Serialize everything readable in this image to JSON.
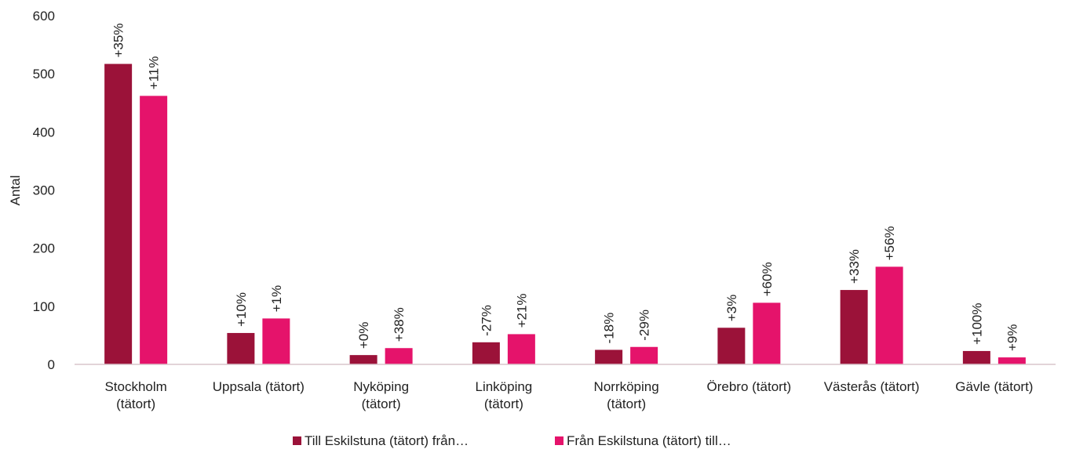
{
  "chart_data": {
    "type": "bar",
    "title": "",
    "xlabel": "",
    "ylabel": "Antal",
    "ylim": [
      0,
      600
    ],
    "yticks": [
      0,
      100,
      200,
      300,
      400,
      500,
      600
    ],
    "grid": false,
    "legend_position": "bottom",
    "categories": [
      [
        "Stockholm",
        "(tätort)"
      ],
      [
        "Uppsala (tätort)"
      ],
      [
        "Nyköping",
        "(tätort)"
      ],
      [
        "Linköping",
        "(tätort)"
      ],
      [
        "Norrköping",
        "(tätort)"
      ],
      [
        "Örebro (tätort)"
      ],
      [
        "Västerås (tätort)"
      ],
      [
        "Gävle (tätort)"
      ]
    ],
    "series": [
      {
        "name": "Till Eskilstuna (tätort) från…",
        "color": "#9b1239",
        "values": [
          517,
          54,
          16,
          38,
          25,
          63,
          128,
          23
        ],
        "labels": [
          "+35%",
          "+10%",
          "+0%",
          "-27%",
          "-18%",
          "+3%",
          "+33%",
          "+100%"
        ]
      },
      {
        "name": "Från Eskilstuna (tätort) till…",
        "color": "#e5136b",
        "values": [
          462,
          79,
          28,
          52,
          30,
          106,
          168,
          12
        ],
        "labels": [
          "+11%",
          "+1%",
          "+38%",
          "+21%",
          "-29%",
          "+60%",
          "+56%",
          "+9%"
        ]
      }
    ]
  }
}
